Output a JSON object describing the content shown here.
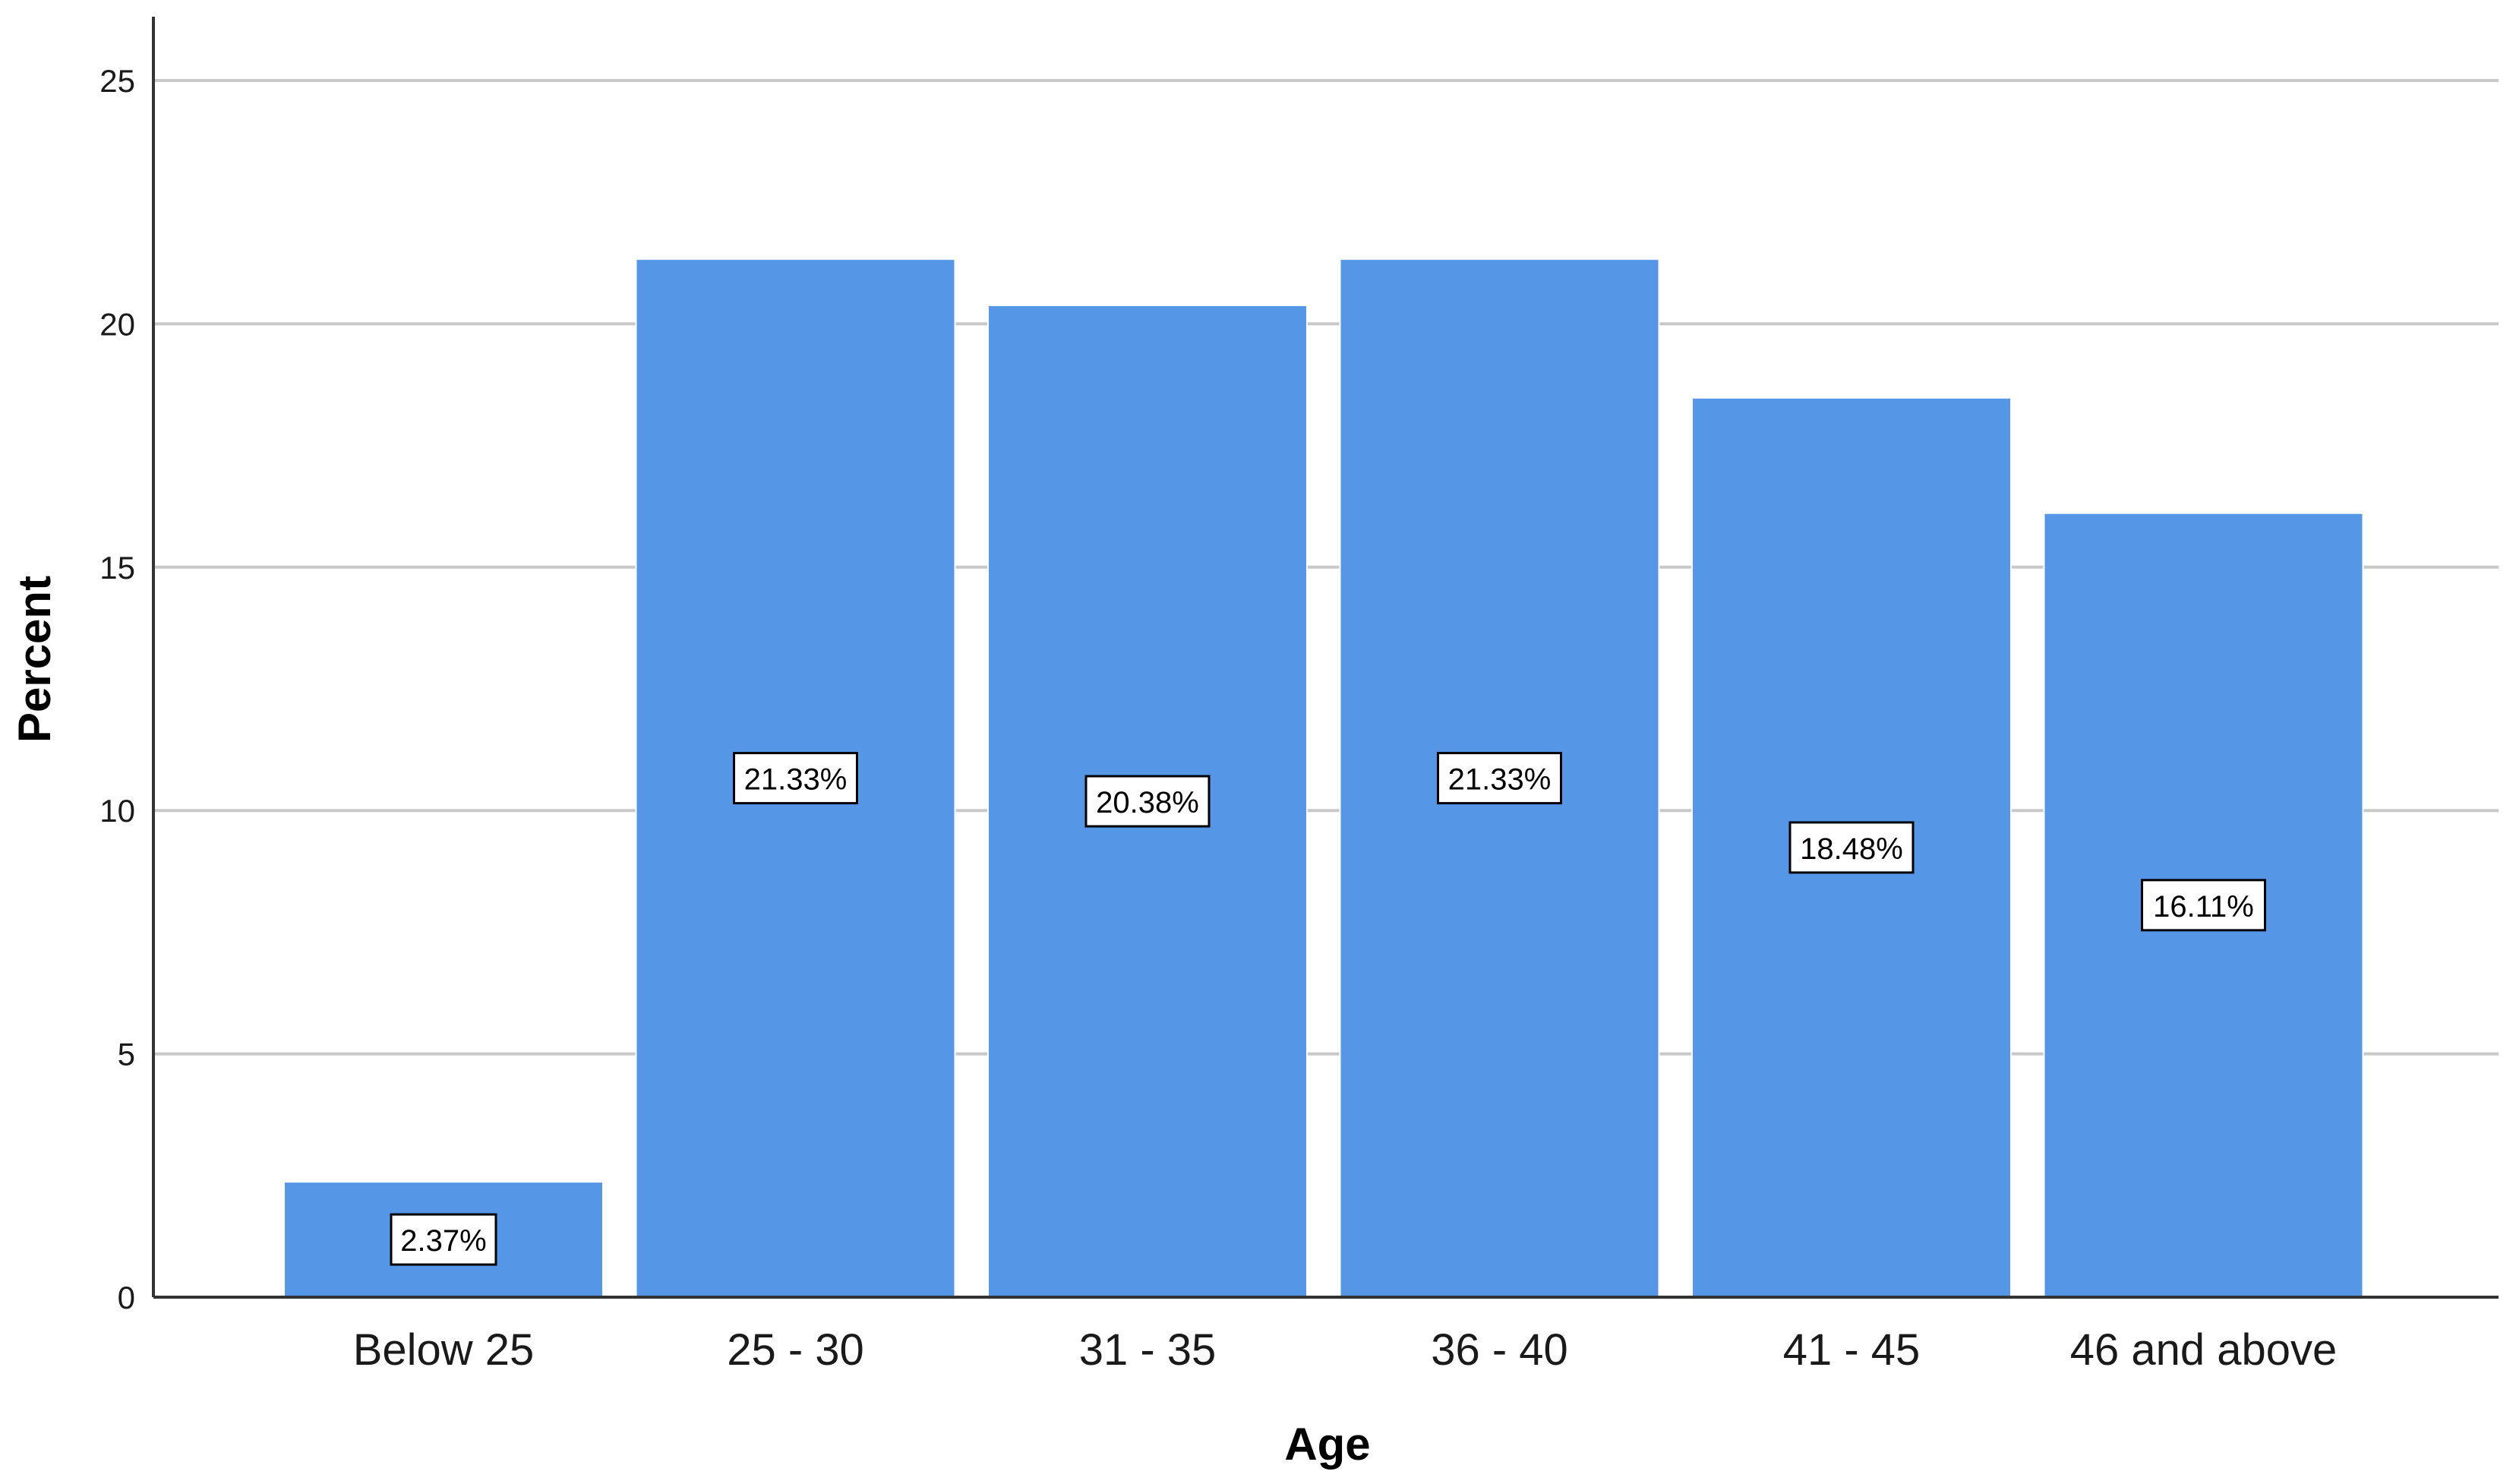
{
  "chart_data": {
    "type": "bar",
    "categories": [
      "Below 25",
      "25 - 30",
      "31 - 35",
      "36 - 40",
      "41 - 45",
      "46 and above"
    ],
    "values": [
      2.37,
      21.33,
      20.38,
      21.33,
      18.48,
      16.11
    ],
    "data_labels": [
      "2.37%",
      "21.33%",
      "20.38%",
      "21.33%",
      "18.48%",
      "16.11%"
    ],
    "xlabel": "Age",
    "ylabel": "Percent",
    "ylim": [
      0,
      25
    ],
    "yticks": [
      0,
      5,
      10,
      15,
      20,
      25
    ],
    "grid": "horizontal",
    "legend": "none",
    "colors": {
      "bar": "#5596e6",
      "bar_edge": "#ffffff",
      "grid": "#c8c8c8",
      "axis": "#333333"
    }
  }
}
